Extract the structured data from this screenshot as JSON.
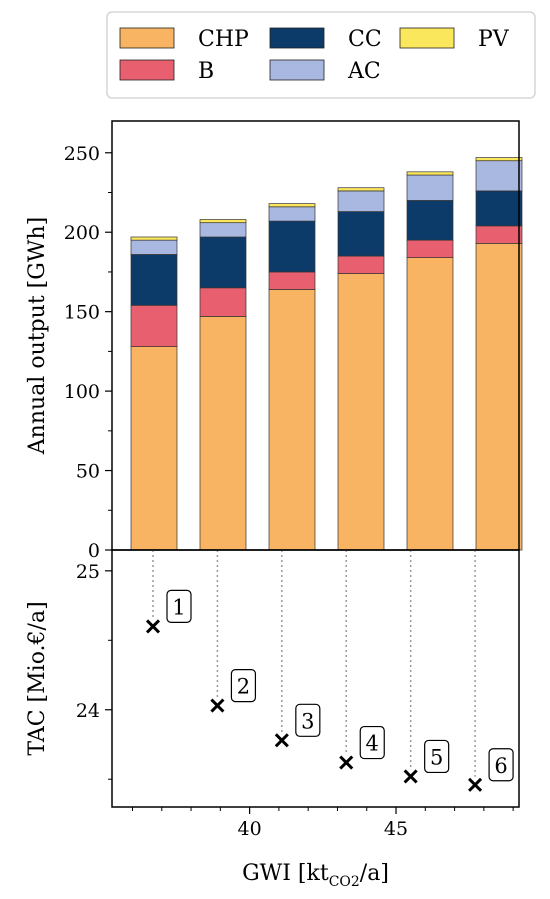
{
  "chart_data": [
    {
      "type": "bar",
      "stacked": true,
      "categories": [
        "1",
        "2",
        "3",
        "4",
        "5",
        "6"
      ],
      "series": [
        {
          "name": "CHP",
          "color": "#f8b462",
          "values": [
            128,
            147,
            164,
            174,
            184,
            193
          ]
        },
        {
          "name": "B",
          "color": "#e8606f",
          "values": [
            26,
            18,
            11,
            11,
            11,
            11
          ]
        },
        {
          "name": "CC",
          "color": "#0c3b69",
          "values": [
            32,
            32,
            32,
            28,
            25,
            22
          ]
        },
        {
          "name": "AC",
          "color": "#a9b8e1",
          "values": [
            9,
            9,
            9,
            13,
            16,
            19
          ]
        },
        {
          "name": "PV",
          "color": "#fbe75c",
          "values": [
            2,
            2,
            2,
            2,
            2,
            2
          ]
        }
      ],
      "ylabel": "Annual output [GWh]",
      "ylim": [
        0,
        270
      ],
      "yticks": [
        "0",
        "50",
        "100",
        "150",
        "200",
        "250"
      ],
      "legend": {
        "placement": "above",
        "columns": 3,
        "order": [
          "CHP",
          "B",
          "CC",
          "AC",
          "PV"
        ]
      }
    },
    {
      "type": "scatter",
      "x": [
        36.7,
        38.9,
        41.1,
        43.3,
        45.5,
        47.7
      ],
      "y": [
        24.6,
        24.03,
        23.78,
        23.62,
        23.52,
        23.46
      ],
      "point_labels": [
        "1",
        "2",
        "3",
        "4",
        "5",
        "6"
      ],
      "marker": "x",
      "xlabel": "GWI [kt",
      "xlabel_subscript": "CO2",
      "xlabel_suffix": "/a]",
      "ylabel": "TAC [Mio.€/a]",
      "xlim": [
        35.3,
        49.2
      ],
      "ylim": [
        23.3,
        25.15
      ],
      "xticks": [
        "40",
        "45"
      ],
      "yticks": [
        "24",
        "25"
      ],
      "guide_lines": "dotted vertical lines linking each bar to its point"
    }
  ]
}
